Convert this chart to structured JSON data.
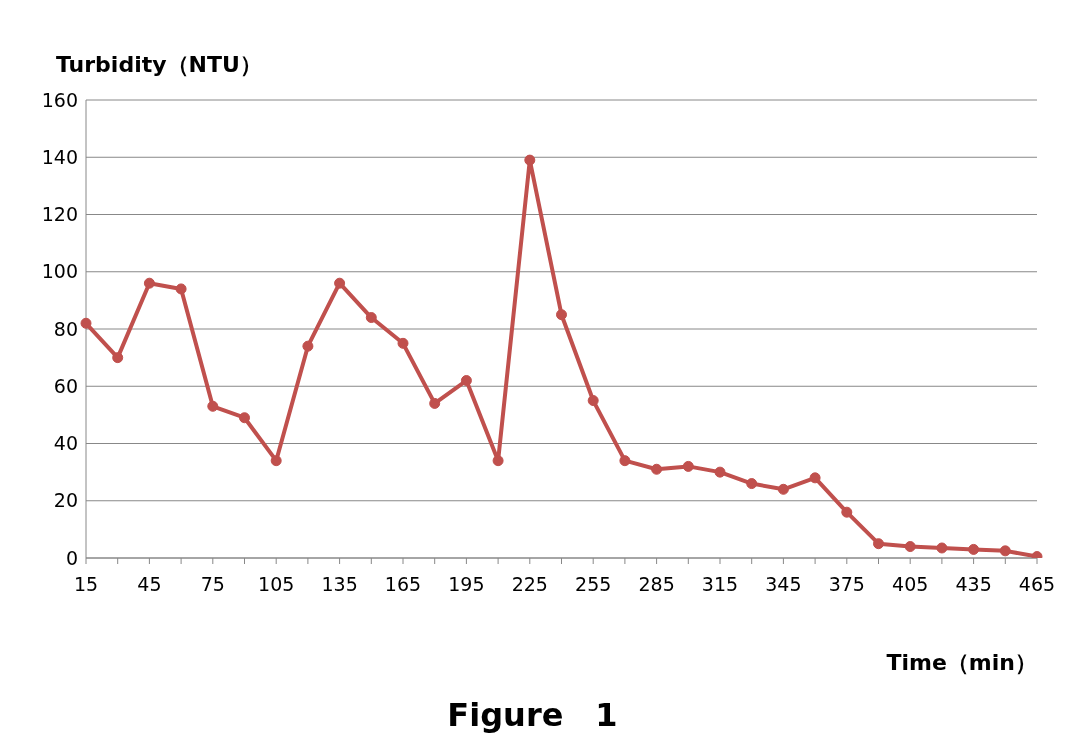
{
  "chart_data": {
    "type": "line",
    "title": "Figure　1",
    "xlabel": "Time（min）",
    "ylabel": "Turbidity（NTU）",
    "categories": [
      "15",
      null,
      "45",
      null,
      "75",
      null,
      "105",
      null,
      "135",
      null,
      "165",
      null,
      "195",
      null,
      "225",
      null,
      "255",
      null,
      "285",
      null,
      "315",
      null,
      "345",
      null,
      "375",
      null,
      "405",
      null,
      "435",
      null,
      "465"
    ],
    "series": [
      {
        "color": "#c0504d",
        "values": [
          82,
          70,
          96,
          94,
          53,
          49,
          34,
          74,
          96,
          84,
          75,
          54,
          62,
          34,
          139,
          85,
          55,
          34,
          31,
          32,
          30,
          26,
          24,
          28,
          16,
          5,
          4,
          3.5,
          3,
          2.5,
          0.5
        ]
      }
    ],
    "ylim": [
      0,
      160
    ],
    "yticks": [
      0,
      20,
      40,
      60,
      80,
      100,
      120,
      140,
      160
    ],
    "grid": "y",
    "legend": false,
    "marker": "circle",
    "line_style": "solid"
  }
}
